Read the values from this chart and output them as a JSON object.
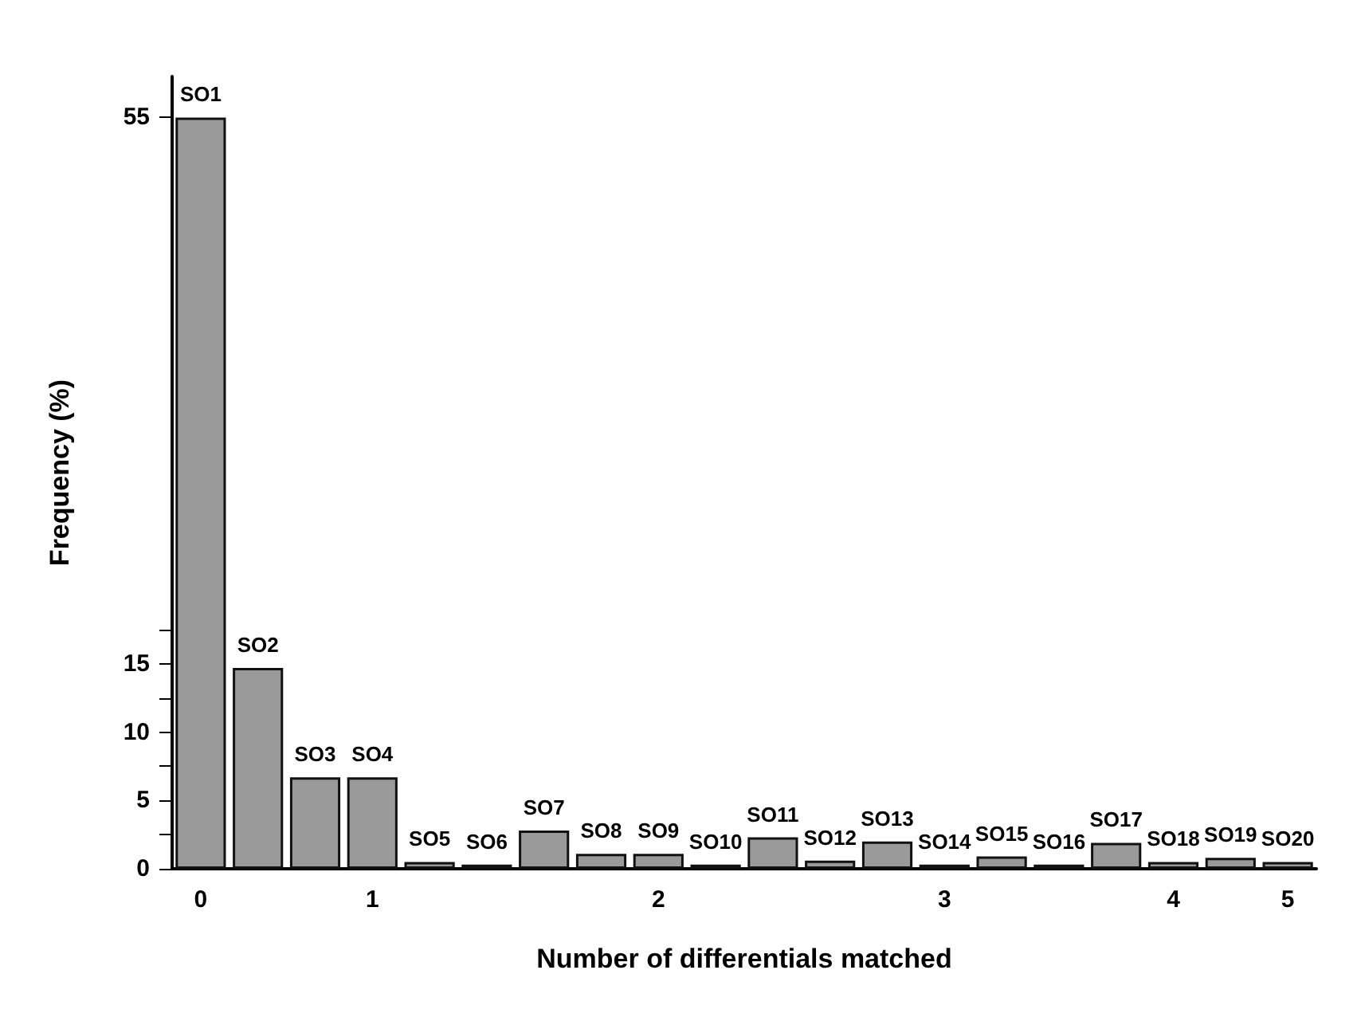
{
  "chart_data": {
    "type": "bar",
    "xlabel": "Number of differentials matched",
    "ylabel": "Frequency (%)",
    "categories": [
      "0",
      null,
      null,
      "1",
      null,
      null,
      null,
      null,
      "2",
      null,
      null,
      null,
      null,
      "3",
      null,
      null,
      null,
      "4",
      null,
      "5"
    ],
    "values": [
      55,
      14.7,
      6.7,
      6.7,
      0.5,
      0.3,
      2.8,
      1.1,
      1.1,
      0.3,
      2.3,
      0.6,
      2.0,
      0.3,
      0.9,
      0.3,
      1.9,
      0.5,
      0.8,
      0.5
    ],
    "value_labels": [
      "SO1",
      "SO2",
      "SO3",
      "SO4",
      "SO5",
      "SO6",
      "SO7",
      "SO8",
      "SO9",
      "SO10",
      "SO11",
      "SO12",
      "SO13",
      "SO14",
      "SO15",
      "SO16",
      "SO17",
      "SO18",
      "SO19",
      "SO20"
    ],
    "color": "#9a9a9a",
    "ylim": [
      0,
      58
    ],
    "yticks": [
      0,
      {
        "value": 2.5,
        "label": null
      },
      5,
      {
        "value": 7.5,
        "label": null
      },
      10,
      {
        "value": 12.5,
        "label": null
      },
      15,
      {
        "value": 17.5,
        "label": null
      },
      55
    ],
    "grid": false
  }
}
